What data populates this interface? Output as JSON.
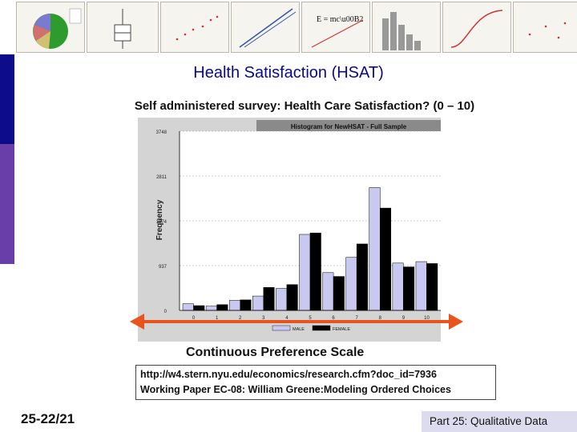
{
  "title": "Health Satisfaction (HSAT)",
  "subtitle": "Self administered survey: Health Care Satisfaction? (0 – 10)",
  "scale_label": "Continuous Preference Scale",
  "reference": {
    "url": "http://w4.stern.nyu.edu/economics/research.cfm?doc_id=7936",
    "paper": "Working Paper EC-08: William Greene:Modeling Ordered Choices"
  },
  "slide_number": "25-22/21",
  "footer": "Part 25: Qualitative Data",
  "colors": {
    "title": "#0a0a88",
    "band_blue": "#0d0d8c",
    "band_purple": "#6a3ea8",
    "male": "#c8c8f0",
    "female": "#000000",
    "arrow": "#e8541c",
    "plot_bg": "#ffffff",
    "frame_bg": "#d4d4d4"
  },
  "chart_data": {
    "type": "bar",
    "title": "Histogram for NewHSAT - Full Sample",
    "xlabel": "",
    "ylabel": "Frequency",
    "categories": [
      "0",
      "1",
      "2",
      "3",
      "4",
      "5",
      "6",
      "7",
      "8",
      "9",
      "10"
    ],
    "series": [
      {
        "name": "MALE",
        "values": [
          140,
          90,
          210,
          300,
          460,
          1590,
          790,
          1110,
          2570,
          990,
          1020
        ]
      },
      {
        "name": "FEMALE",
        "values": [
          100,
          120,
          220,
          480,
          540,
          1620,
          710,
          1390,
          2140,
          910,
          980
        ]
      }
    ],
    "yticks": [
      0,
      937,
      1874,
      2811,
      3748
    ],
    "ylim": [
      0,
      3748
    ],
    "legend": [
      "MALE",
      "FEMALE"
    ],
    "legend_position": "bottom",
    "grid": true
  }
}
